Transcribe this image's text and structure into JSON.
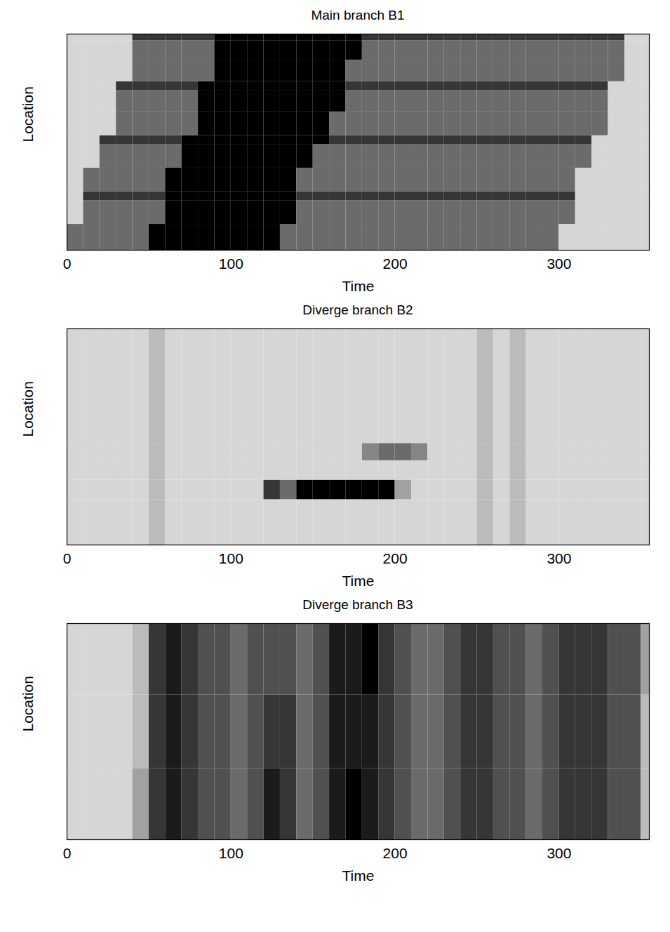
{
  "chart_data": [
    {
      "type": "heatmap",
      "title": "Main branch B1",
      "x_label": "Time",
      "y_label": "Location",
      "xlim": [
        0,
        355
      ],
      "xticks": [
        0,
        100,
        200,
        300
      ],
      "ylim": [
        0,
        10
      ],
      "tick_labels": "x",
      "zlim": [
        0,
        4
      ],
      "time_bins": [
        0,
        10,
        20,
        30,
        40,
        50,
        60,
        70,
        80,
        90,
        100,
        110,
        120,
        130,
        140,
        150,
        160,
        170,
        180,
        190,
        200,
        210,
        220,
        230,
        240,
        250,
        260,
        270,
        280,
        290,
        300,
        310,
        320,
        330,
        340,
        350,
        355
      ],
      "location_bins": [
        0,
        1.2,
        2.3,
        2.7,
        3.8,
        4.9,
        5.3,
        6.4,
        7.4,
        7.8,
        8.8,
        9.7,
        10
      ],
      "values": [
        [
          2,
          2,
          2,
          2,
          2,
          4,
          4,
          4,
          4,
          4,
          4,
          4,
          4,
          2,
          2,
          2,
          2,
          2,
          2,
          2,
          2,
          2,
          2,
          2,
          2,
          2,
          2,
          2,
          2,
          2,
          0,
          0,
          0,
          0,
          0,
          0
        ],
        [
          0,
          2,
          2,
          2,
          2,
          2,
          4,
          4,
          4,
          4,
          4,
          4,
          4,
          4,
          2,
          2,
          2,
          2,
          2,
          2,
          2,
          2,
          2,
          2,
          2,
          2,
          2,
          2,
          2,
          2,
          2,
          0,
          0,
          0,
          0,
          0
        ],
        [
          0,
          3,
          3,
          3,
          3,
          3,
          4,
          4,
          4,
          4,
          4,
          4,
          4,
          4,
          3,
          3,
          3,
          3,
          3,
          3,
          3,
          3,
          3,
          3,
          3,
          3,
          3,
          3,
          3,
          3,
          3,
          0,
          0,
          0,
          0,
          0
        ],
        [
          0,
          2,
          2,
          2,
          2,
          2,
          4,
          4,
          4,
          4,
          4,
          4,
          4,
          4,
          2,
          2,
          2,
          2,
          2,
          2,
          2,
          2,
          2,
          2,
          2,
          2,
          2,
          2,
          2,
          2,
          2,
          0,
          0,
          0,
          0,
          0
        ],
        [
          0,
          0,
          2,
          2,
          2,
          2,
          2,
          4,
          4,
          4,
          4,
          4,
          4,
          4,
          4,
          2,
          2,
          2,
          2,
          2,
          2,
          2,
          2,
          2,
          2,
          2,
          2,
          2,
          2,
          2,
          2,
          2,
          0,
          0,
          0,
          0
        ],
        [
          0,
          0,
          3,
          3,
          3,
          3,
          3,
          4,
          4,
          4,
          4,
          4,
          4,
          4,
          4,
          4,
          3,
          3,
          3,
          3,
          3,
          3,
          3,
          3,
          3,
          3,
          3,
          3,
          3,
          3,
          3,
          3,
          0,
          0,
          0,
          0
        ],
        [
          0,
          0,
          0,
          2,
          2,
          2,
          2,
          2,
          4,
          4,
          4,
          4,
          4,
          4,
          4,
          4,
          2,
          2,
          2,
          2,
          2,
          2,
          2,
          2,
          2,
          2,
          2,
          2,
          2,
          2,
          2,
          2,
          2,
          0,
          0,
          0
        ],
        [
          0,
          0,
          0,
          2,
          2,
          2,
          2,
          2,
          4,
          4,
          4,
          4,
          4,
          4,
          4,
          4,
          4,
          2,
          2,
          2,
          2,
          2,
          2,
          2,
          2,
          2,
          2,
          2,
          2,
          2,
          2,
          2,
          2,
          0,
          0,
          0
        ],
        [
          0,
          0,
          0,
          3,
          3,
          3,
          3,
          3,
          4,
          4,
          4,
          4,
          4,
          4,
          4,
          4,
          4,
          3,
          3,
          3,
          3,
          3,
          3,
          3,
          3,
          3,
          3,
          3,
          3,
          3,
          3,
          3,
          3,
          0,
          0,
          0
        ],
        [
          0,
          0,
          0,
          0,
          2,
          2,
          2,
          2,
          2,
          4,
          4,
          4,
          4,
          4,
          4,
          4,
          4,
          2,
          2,
          2,
          2,
          2,
          2,
          2,
          2,
          2,
          2,
          2,
          2,
          2,
          2,
          2,
          2,
          2,
          0,
          0
        ],
        [
          0,
          0,
          0,
          0,
          2,
          2,
          2,
          2,
          2,
          4,
          4,
          4,
          4,
          4,
          4,
          4,
          4,
          4,
          2,
          2,
          2,
          2,
          2,
          2,
          2,
          2,
          2,
          2,
          2,
          2,
          2,
          2,
          2,
          2,
          0,
          0
        ],
        [
          0,
          0,
          0,
          0,
          3,
          3,
          3,
          3,
          3,
          4,
          4,
          4,
          4,
          4,
          4,
          4,
          4,
          4,
          3,
          3,
          3,
          3,
          3,
          3,
          3,
          3,
          3,
          3,
          3,
          3,
          3,
          3,
          3,
          3,
          0,
          0
        ]
      ]
    },
    {
      "type": "heatmap",
      "title": "Diverge branch B2",
      "x_label": "Time",
      "y_label": "Location",
      "xlim": [
        0,
        355
      ],
      "xticks": [
        0,
        100,
        200,
        300
      ],
      "ylim": [
        0,
        10
      ],
      "tick_labels": "x",
      "zlim": [
        0,
        4
      ],
      "time_bins": [
        0,
        10,
        20,
        30,
        40,
        50,
        60,
        70,
        80,
        90,
        100,
        110,
        120,
        130,
        140,
        150,
        160,
        170,
        180,
        190,
        200,
        210,
        220,
        230,
        240,
        250,
        260,
        270,
        280,
        290,
        300,
        310,
        320,
        330,
        340,
        350,
        355
      ],
      "location_bins": [
        0,
        2.1,
        3.0,
        3.9,
        4.7,
        10
      ],
      "values": [
        [
          0,
          0,
          0,
          0,
          0,
          0.5,
          0,
          0,
          0,
          0,
          0,
          0,
          0,
          0,
          0,
          0,
          0,
          0,
          0,
          0,
          0,
          0,
          0,
          0,
          0,
          0.5,
          0,
          0.5,
          0,
          0,
          0,
          0,
          0,
          0,
          0,
          0
        ],
        [
          0,
          0,
          0,
          0,
          0,
          0.5,
          0,
          0,
          0,
          0,
          0,
          0,
          3,
          2,
          4,
          4,
          4,
          4,
          4,
          4,
          1,
          0,
          0,
          0,
          0,
          0.5,
          0,
          0.5,
          0,
          0,
          0,
          0,
          0,
          0,
          0,
          0
        ],
        [
          0,
          0,
          0,
          0,
          0,
          0.5,
          0,
          0,
          0,
          0,
          0,
          0,
          0,
          0,
          0,
          0,
          0,
          0,
          0,
          0,
          0,
          0,
          0,
          0,
          0,
          0.5,
          0,
          0.5,
          0,
          0,
          0,
          0,
          0,
          0,
          0,
          0
        ],
        [
          0,
          0,
          0,
          0,
          0,
          0.5,
          0,
          0,
          0,
          0,
          0,
          0,
          0,
          0,
          0,
          0,
          0,
          0,
          1.5,
          2,
          2,
          1.5,
          0,
          0,
          0,
          0.5,
          0,
          0.5,
          0,
          0,
          0,
          0,
          0,
          0,
          0,
          0
        ],
        [
          0,
          0,
          0,
          0,
          0,
          0.5,
          0,
          0,
          0,
          0,
          0,
          0,
          0,
          0,
          0,
          0,
          0,
          0,
          0,
          0,
          0,
          0,
          0,
          0,
          0,
          0.5,
          0,
          0.5,
          0,
          0,
          0,
          0,
          0,
          0,
          0,
          0
        ]
      ]
    },
    {
      "type": "heatmap",
      "title": "Diverge branch B3",
      "x_label": "Time",
      "y_label": "Location",
      "xlim": [
        0,
        355
      ],
      "xticks": [
        0,
        100,
        200,
        300
      ],
      "ylim": [
        0,
        10
      ],
      "tick_labels": "x",
      "zlim": [
        0,
        4
      ],
      "time_bins": [
        0,
        10,
        20,
        30,
        40,
        50,
        60,
        70,
        80,
        90,
        100,
        110,
        120,
        130,
        140,
        150,
        160,
        170,
        180,
        190,
        200,
        210,
        220,
        230,
        240,
        250,
        260,
        270,
        280,
        290,
        300,
        310,
        320,
        330,
        340,
        350,
        355
      ],
      "location_bins": [
        0,
        3.3,
        6.7,
        10
      ],
      "values": [
        [
          0,
          0,
          0,
          0,
          1,
          3,
          3.5,
          3,
          2.5,
          2.5,
          2,
          2.5,
          3.5,
          3,
          2,
          2.5,
          3.5,
          4,
          3.5,
          3,
          2.5,
          2,
          2,
          2.5,
          3,
          3,
          2.5,
          2.5,
          2,
          2.5,
          3,
          3,
          3,
          2.5,
          2.5,
          0.5
        ],
        [
          0,
          0,
          0,
          0,
          0.5,
          3,
          3.5,
          3,
          2.5,
          2.5,
          2,
          2.5,
          3,
          3,
          2,
          2.5,
          3.5,
          3.5,
          3.5,
          3,
          2.5,
          2,
          2,
          2.5,
          3,
          3,
          2.5,
          2.5,
          2,
          2.5,
          3,
          3,
          3,
          2.5,
          2.5,
          0.5
        ],
        [
          0,
          0,
          0,
          0,
          0.5,
          3,
          3.5,
          3,
          2.5,
          2.5,
          2,
          2.5,
          2.5,
          2.5,
          2,
          2.5,
          3.5,
          3.5,
          4,
          3,
          2.5,
          2,
          2,
          2.5,
          3,
          3,
          2.5,
          2.5,
          2,
          2.5,
          3,
          3,
          3,
          2.5,
          2.5,
          1
        ]
      ]
    }
  ]
}
